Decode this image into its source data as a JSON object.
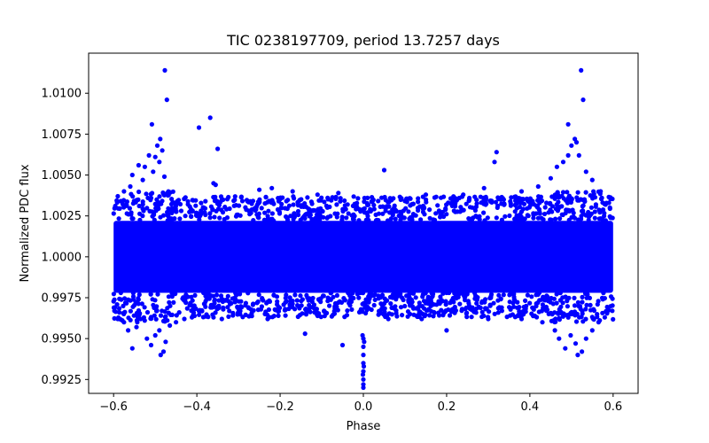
{
  "chart_data": {
    "type": "scatter",
    "title": "TIC 0238197709, period 13.7257 days",
    "xlabel": "Phase",
    "ylabel": "Normalized PDC flux",
    "xlim": [
      -0.66,
      0.66
    ],
    "ylim": [
      0.99165,
      1.01245
    ],
    "xticks": [
      -0.6,
      -0.4,
      -0.2,
      0.0,
      0.2,
      0.4,
      0.6
    ],
    "xtick_labels": [
      "−0.6",
      "−0.4",
      "−0.2",
      "0.0",
      "0.2",
      "0.4",
      "0.6"
    ],
    "yticks": [
      0.9925,
      0.995,
      0.9975,
      1.0,
      1.0025,
      1.005,
      1.0075,
      1.01
    ],
    "ytick_labels": [
      "0.9925",
      "0.9950",
      "0.9975",
      "1.0000",
      "1.0025",
      "1.0050",
      "1.0075",
      "1.0100"
    ],
    "marker_color": "#0000ff",
    "grid": false,
    "series": [
      {
        "name": "flux",
        "band": {
          "x_range": [
            -0.6,
            0.6
          ],
          "core_min": 0.9978,
          "core_max": 1.0022,
          "outer_min": 0.9963,
          "outer_max": 1.0037,
          "note": "dense continuous band of points centred at 1.0000"
        },
        "points": [
          {
            "x": -0.477,
            "y": 1.0114
          },
          {
            "x": -0.472,
            "y": 1.0096
          },
          {
            "x": -0.508,
            "y": 1.0081
          },
          {
            "x": -0.488,
            "y": 1.0072
          },
          {
            "x": -0.495,
            "y": 1.0068
          },
          {
            "x": -0.483,
            "y": 1.0065
          },
          {
            "x": -0.5,
            "y": 1.0061
          },
          {
            "x": -0.515,
            "y": 1.0062
          },
          {
            "x": -0.54,
            "y": 1.0056
          },
          {
            "x": -0.555,
            "y": 1.005
          },
          {
            "x": -0.525,
            "y": 1.0055
          },
          {
            "x": -0.49,
            "y": 1.0058
          },
          {
            "x": -0.505,
            "y": 1.0052
          },
          {
            "x": -0.478,
            "y": 1.0049
          },
          {
            "x": -0.53,
            "y": 1.0047
          },
          {
            "x": -0.56,
            "y": 1.0043
          },
          {
            "x": -0.575,
            "y": 1.004
          },
          {
            "x": -0.59,
            "y": 1.0037
          },
          {
            "x": -0.368,
            "y": 1.0085
          },
          {
            "x": -0.395,
            "y": 1.0079
          },
          {
            "x": -0.35,
            "y": 1.0066
          },
          {
            "x": -0.36,
            "y": 1.0045
          },
          {
            "x": -0.355,
            "y": 1.0044
          },
          {
            "x": -0.25,
            "y": 1.0041
          },
          {
            "x": -0.22,
            "y": 1.0042
          },
          {
            "x": -0.17,
            "y": 1.004
          },
          {
            "x": -0.11,
            "y": 1.0038
          },
          {
            "x": -0.06,
            "y": 1.0039
          },
          {
            "x": 0.05,
            "y": 1.0053
          },
          {
            "x": 0.01,
            "y": 1.0036
          },
          {
            "x": 0.15,
            "y": 1.0038
          },
          {
            "x": 0.24,
            "y": 1.0038
          },
          {
            "x": 0.29,
            "y": 1.0042
          },
          {
            "x": 0.32,
            "y": 1.0064
          },
          {
            "x": 0.315,
            "y": 1.0058
          },
          {
            "x": 0.38,
            "y": 1.004
          },
          {
            "x": 0.42,
            "y": 1.0043
          },
          {
            "x": 0.45,
            "y": 1.0048
          },
          {
            "x": 0.465,
            "y": 1.0055
          },
          {
            "x": 0.48,
            "y": 1.0058
          },
          {
            "x": 0.492,
            "y": 1.0062
          },
          {
            "x": 0.5,
            "y": 1.0068
          },
          {
            "x": 0.508,
            "y": 1.0072
          },
          {
            "x": 0.512,
            "y": 1.007
          },
          {
            "x": 0.518,
            "y": 1.0062
          },
          {
            "x": 0.492,
            "y": 1.0081
          },
          {
            "x": 0.523,
            "y": 1.0114
          },
          {
            "x": 0.528,
            "y": 1.0096
          },
          {
            "x": 0.535,
            "y": 1.0052
          },
          {
            "x": 0.55,
            "y": 1.0047
          },
          {
            "x": 0.57,
            "y": 1.004
          },
          {
            "x": 0.59,
            "y": 1.0033
          },
          {
            "x": -0.598,
            "y": 0.9967
          },
          {
            "x": -0.59,
            "y": 0.9962
          },
          {
            "x": -0.575,
            "y": 0.996
          },
          {
            "x": -0.565,
            "y": 0.9955
          },
          {
            "x": -0.555,
            "y": 0.9944
          },
          {
            "x": -0.545,
            "y": 0.9957
          },
          {
            "x": -0.535,
            "y": 0.9962
          },
          {
            "x": -0.52,
            "y": 0.995
          },
          {
            "x": -0.51,
            "y": 0.9946
          },
          {
            "x": -0.5,
            "y": 0.9952
          },
          {
            "x": -0.49,
            "y": 0.9955
          },
          {
            "x": -0.487,
            "y": 0.994
          },
          {
            "x": -0.48,
            "y": 0.9942
          },
          {
            "x": -0.475,
            "y": 0.9948
          },
          {
            "x": -0.465,
            "y": 0.9958
          },
          {
            "x": -0.45,
            "y": 0.996
          },
          {
            "x": -0.43,
            "y": 0.9962
          },
          {
            "x": -0.36,
            "y": 0.9963
          },
          {
            "x": -0.34,
            "y": 0.9962
          },
          {
            "x": -0.23,
            "y": 0.9962
          },
          {
            "x": -0.14,
            "y": 0.9953
          },
          {
            "x": -0.05,
            "y": 0.9946
          },
          {
            "x": 0.06,
            "y": 0.9962
          },
          {
            "x": 0.14,
            "y": 0.9962
          },
          {
            "x": 0.2,
            "y": 0.9955
          },
          {
            "x": 0.3,
            "y": 0.9962
          },
          {
            "x": 0.38,
            "y": 0.9962
          },
          {
            "x": 0.43,
            "y": 0.996
          },
          {
            "x": 0.46,
            "y": 0.9955
          },
          {
            "x": 0.47,
            "y": 0.995
          },
          {
            "x": 0.485,
            "y": 0.9944
          },
          {
            "x": 0.498,
            "y": 0.9952
          },
          {
            "x": 0.51,
            "y": 0.9947
          },
          {
            "x": 0.515,
            "y": 0.994
          },
          {
            "x": 0.525,
            "y": 0.9942
          },
          {
            "x": 0.535,
            "y": 0.995
          },
          {
            "x": 0.55,
            "y": 0.9955
          },
          {
            "x": 0.565,
            "y": 0.996
          },
          {
            "x": 0.58,
            "y": 0.9963
          },
          {
            "x": 0.598,
            "y": 0.9967
          },
          {
            "x": 0.0,
            "y": 0.995
          },
          {
            "x": 0.0,
            "y": 0.9945
          },
          {
            "x": 0.0,
            "y": 0.994
          },
          {
            "x": 0.0,
            "y": 0.9935
          },
          {
            "x": 0.0,
            "y": 0.993
          },
          {
            "x": 0.0,
            "y": 0.9925
          },
          {
            "x": 0.0,
            "y": 0.9922
          },
          {
            "x": 0.0,
            "y": 0.992
          },
          {
            "x": 0.002,
            "y": 0.9948
          },
          {
            "x": -0.002,
            "y": 0.9952
          },
          {
            "x": 0.001,
            "y": 0.9933
          },
          {
            "x": -0.001,
            "y": 0.9928
          }
        ]
      }
    ]
  }
}
